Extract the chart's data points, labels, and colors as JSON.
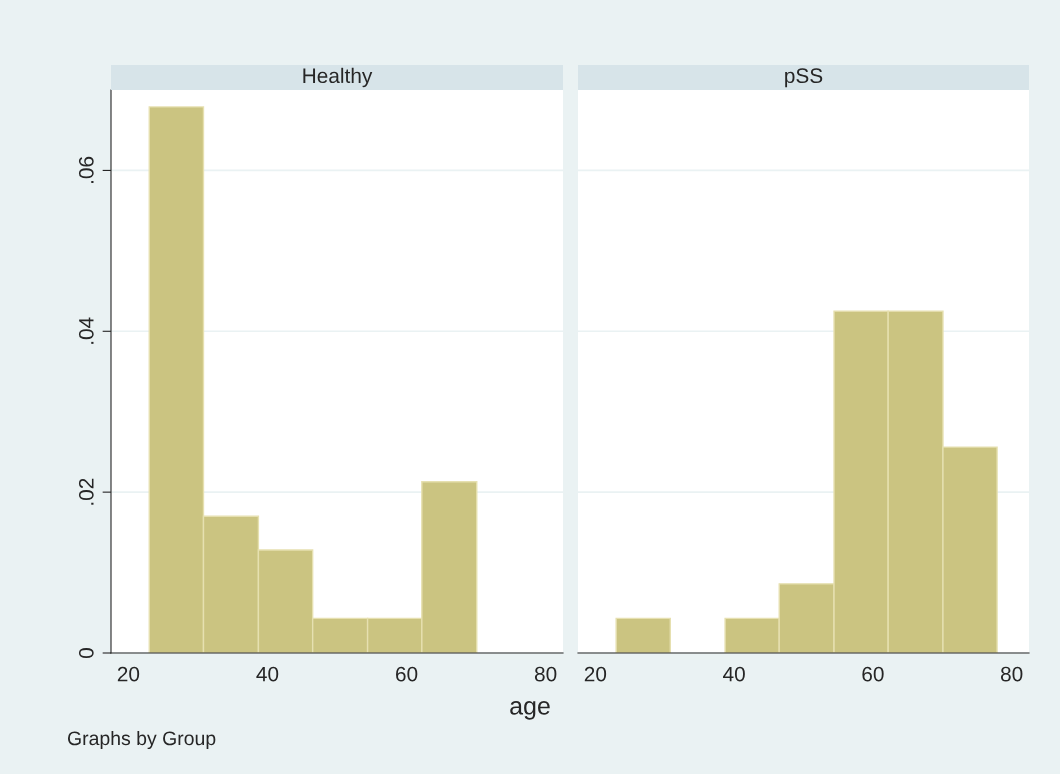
{
  "chart_data": [
    {
      "type": "histogram",
      "title": "Healthy",
      "xlabel": "age",
      "annotations": [
        "Graphs by Group"
      ],
      "color": "#cbc481",
      "bins": [
        23,
        30.8,
        38.7,
        46.5,
        54.4,
        62.2,
        70.1
      ],
      "values": [
        0.0679,
        0.017,
        0.0128,
        0.0043,
        0.0043,
        0.0213
      ],
      "xlim": [
        17.5,
        82.5
      ],
      "xticks": [
        20,
        40,
        60,
        80
      ],
      "ylim": [
        0,
        0.07
      ],
      "yticks": [
        {
          "value": 0,
          "label": "0"
        },
        {
          "value": 0.02,
          "label": ".02"
        },
        {
          "value": 0.04,
          "label": ".04"
        },
        {
          "value": 0.06,
          "label": ".06"
        }
      ],
      "grid": "y"
    },
    {
      "type": "histogram",
      "title": "pSS",
      "color": "#cbc481",
      "bins": [
        23,
        30.8,
        38.7,
        46.5,
        54.4,
        62.2,
        70.1,
        77.9
      ],
      "values": [
        0.0043,
        0,
        0.0043,
        0.0086,
        0.0425,
        0.0425,
        0.0256
      ],
      "xlim": [
        17.5,
        82.5
      ],
      "xticks": [
        20,
        40,
        60,
        80
      ],
      "ylim": [
        0,
        0.07
      ],
      "yticks": [
        {
          "value": 0,
          "label": null
        },
        {
          "value": 0.02,
          "label": null
        },
        {
          "value": 0.04,
          "label": null
        },
        {
          "value": 0.06,
          "label": null
        }
      ],
      "grid": "y",
      "tick_labels": "x"
    }
  ]
}
